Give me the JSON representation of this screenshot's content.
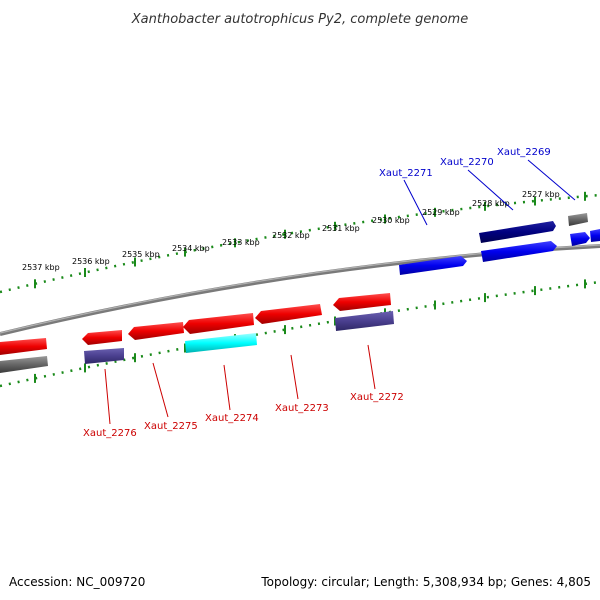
{
  "title": "Xanthobacter autotrophicus Py2, complete genome",
  "footer": {
    "accession": "Accession: NC_009720",
    "summary": "Topology: circular; Length: 5,308,934 bp; Genes: 4,805"
  },
  "colors": {
    "backbone": "#888888",
    "ticks": "#1a8a1a",
    "forward_gene": "#0000ee",
    "forward_dark": "#000080",
    "reverse_gene": "#ee0000",
    "reverse_purple": "#4a3f8f",
    "reverse_cyan": "#00ffff",
    "other_gene": "#666666",
    "label_blue": "#0000cc",
    "label_red": "#cc0000"
  },
  "ruler": {
    "labels": [
      "2537 kbp",
      "2536 kbp",
      "2535 kbp",
      "2534 kbp",
      "2533 kbp",
      "2532 kbp",
      "2531 kbp",
      "2530 kbp",
      "2529 kbp",
      "2528 kbp",
      "2527 kbp"
    ]
  },
  "gene_labels": {
    "top": [
      "Xaut_2271",
      "Xaut_2270",
      "Xaut_2269"
    ],
    "bottom": [
      "Xaut_2276",
      "Xaut_2275",
      "Xaut_2274",
      "Xaut_2273",
      "Xaut_2272"
    ]
  }
}
